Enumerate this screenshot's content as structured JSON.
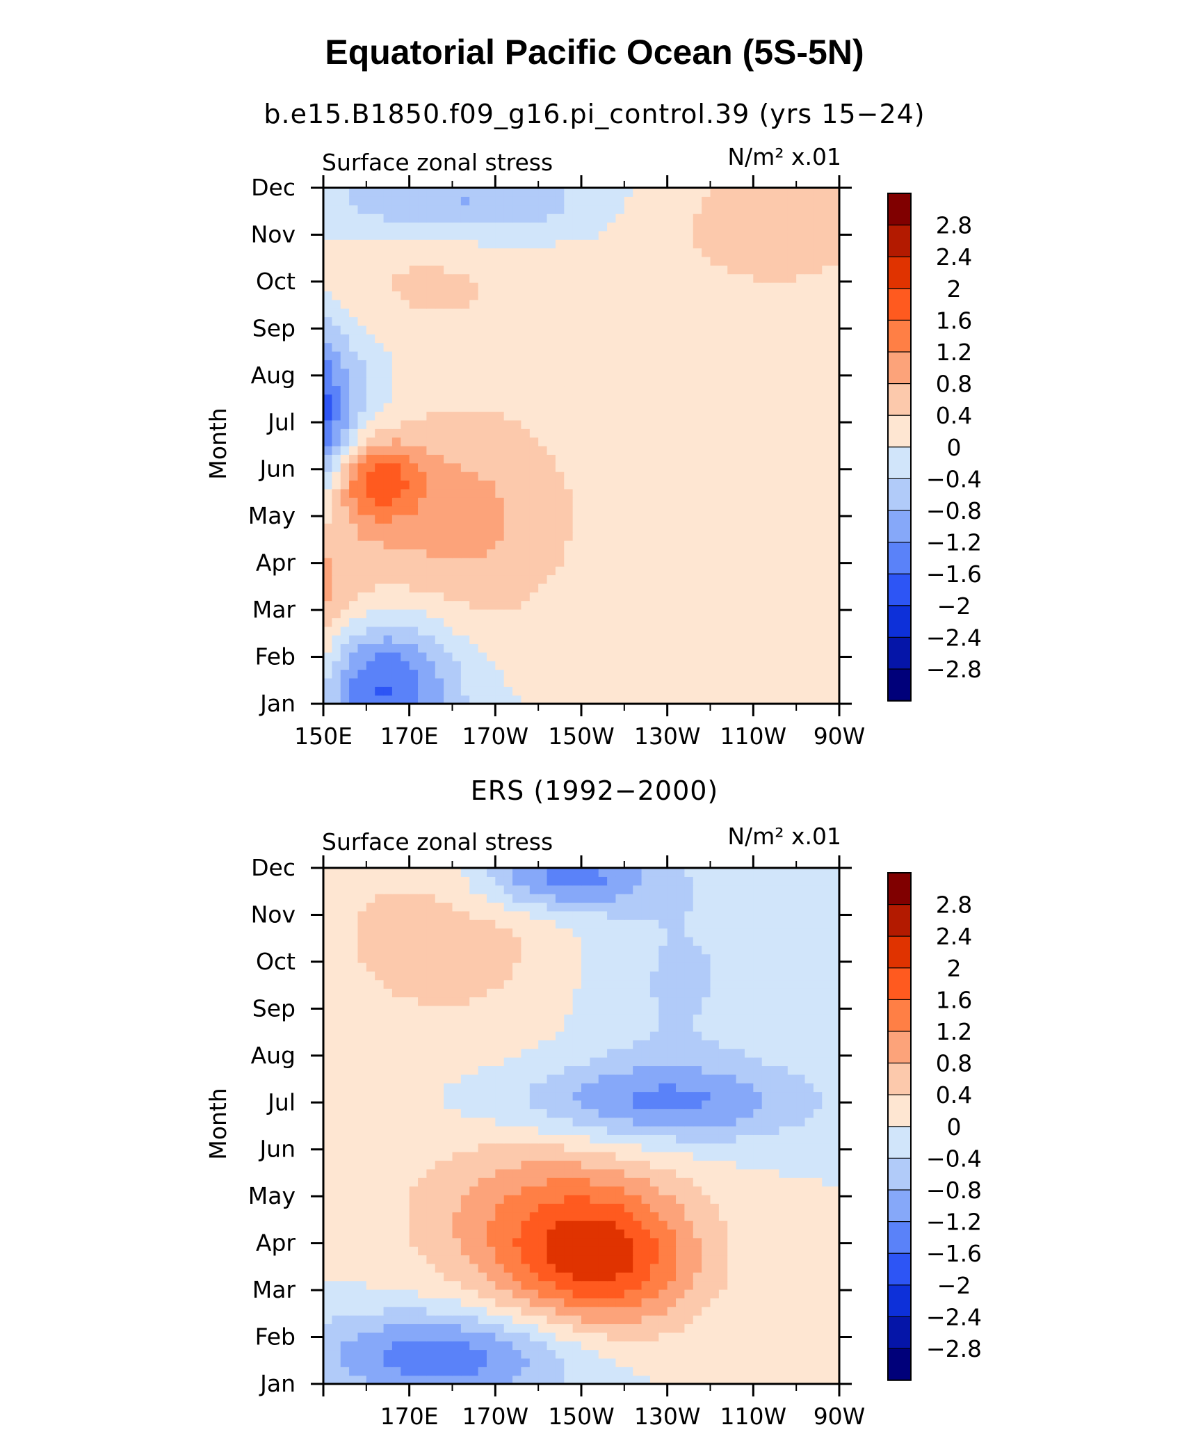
{
  "title": "Equatorial Pacific Ocean (5S-5N)",
  "colorbar": {
    "levels": [
      "2.8",
      "2.4",
      "2",
      "1.6",
      "1.2",
      "0.8",
      "0.4",
      "0",
      "−0.4",
      "−0.8",
      "−1.2",
      "−1.6",
      "−2",
      "−2.4",
      "−2.8"
    ],
    "colors": [
      "#800000",
      "#b31a00",
      "#e03300",
      "#ff5a1f",
      "#ff7f45",
      "#fca37a",
      "#fcc9ac",
      "#fee6d2",
      "#d1e5fa",
      "#b1cbf9",
      "#86a8f9",
      "#5a82f9",
      "#2d55f5",
      "#0d30d9",
      "#0515a8",
      "#00007a"
    ]
  },
  "chart_data": [
    {
      "type": "heatmap",
      "subtitle": "b.e15.B1850.f09_g16.pi_control.39 (yrs 15−24)",
      "left_label": "Surface zonal stress",
      "units_label": "N/m² x.01",
      "xlabel": "",
      "ylabel": "Month",
      "x_ticks": [
        "150E",
        "170E",
        "170W",
        "150W",
        "130W",
        "110W",
        "90W"
      ],
      "x_range": [
        150,
        270
      ],
      "y_ticks": [
        "Jan",
        "Feb",
        "Mar",
        "Apr",
        "May",
        "Jun",
        "Jul",
        "Aug",
        "Sep",
        "Oct",
        "Nov",
        "Dec"
      ],
      "features": [
        {
          "lon": 137,
          "month": 6.0,
          "value": -3.0,
          "sx": 12,
          "sy": 1.4
        },
        {
          "lon": 132,
          "month": 5.7,
          "value": -0.7,
          "sx": 22,
          "sy": 2.4
        },
        {
          "lon": 162,
          "month": 4.8,
          "value": 1.6,
          "sx": 7,
          "sy": 0.6
        },
        {
          "lon": 178,
          "month": 4.0,
          "value": 1.0,
          "sx": 22,
          "sy": 1.8
        },
        {
          "lon": 143,
          "month": 1.8,
          "value": 1.4,
          "sx": 11,
          "sy": 2.0
        },
        {
          "lon": 162,
          "month": 0.4,
          "value": -1.9,
          "sx": 13,
          "sy": 1.1
        },
        {
          "lon": 182,
          "month": 10.7,
          "value": -0.9,
          "sx": 22,
          "sy": 0.6
        },
        {
          "lon": 255,
          "month": 10.3,
          "value": 0.6,
          "sx": 22,
          "sy": 1.4
        },
        {
          "lon": 170,
          "month": 9.0,
          "value": 0.5,
          "sx": 25,
          "sy": 1.0
        }
      ],
      "zrange": [
        -3.0,
        1.6
      ]
    },
    {
      "type": "heatmap",
      "subtitle": "ERS (1992−2000)",
      "left_label": "Surface zonal stress",
      "units_label": "N/m² x.01",
      "xlabel": "",
      "ylabel": "Month",
      "x_ticks": [
        "",
        "170E",
        "170W",
        "150W",
        "130W",
        "110W",
        "90W"
      ],
      "x_range": [
        150,
        270
      ],
      "y_ticks": [
        "Jan",
        "Feb",
        "Mar",
        "Apr",
        "May",
        "Jun",
        "Jul",
        "Aug",
        "Sep",
        "Oct",
        "Nov",
        "Dec"
      ],
      "features": [
        {
          "lon": 215,
          "month": 2.6,
          "value": 1.7,
          "sx": 16,
          "sy": 1.1
        },
        {
          "lon": 200,
          "month": 3.6,
          "value": 1.0,
          "sx": 22,
          "sy": 1.3
        },
        {
          "lon": 178,
          "month": 0.6,
          "value": -1.5,
          "sx": 22,
          "sy": 0.7
        },
        {
          "lon": 228,
          "month": 6.0,
          "value": -1.2,
          "sx": 25,
          "sy": 0.6
        },
        {
          "lon": 205,
          "month": 10.8,
          "value": -1.5,
          "sx": 14,
          "sy": 0.5
        },
        {
          "lon": 180,
          "month": 9.5,
          "value": 0.6,
          "sx": 25,
          "sy": 1.6
        },
        {
          "lon": 230,
          "month": 8.8,
          "value": -0.5,
          "sx": 18,
          "sy": 2.0
        }
      ],
      "zrange": [
        -2.0,
        1.8
      ]
    }
  ]
}
